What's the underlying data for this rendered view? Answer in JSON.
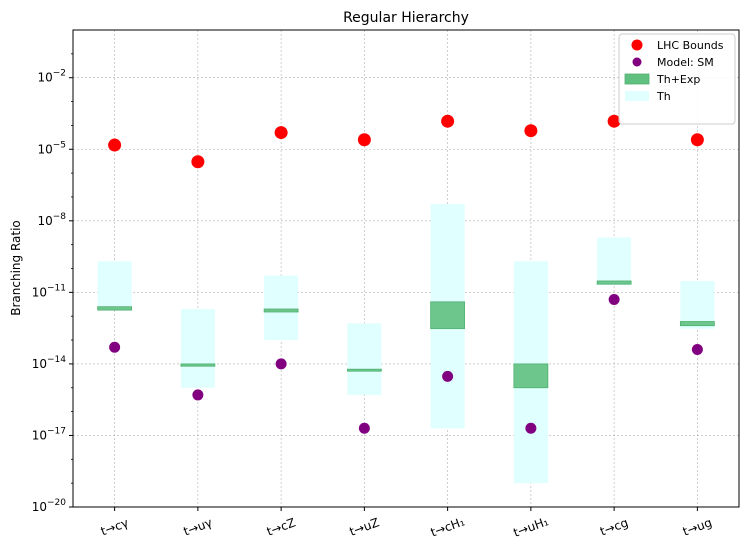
{
  "chart_data": {
    "type": "scatter",
    "title": "Regular Hierarchy",
    "ylabel": "Branching Ratio",
    "xlabel": "",
    "yscale": "log",
    "ylim_exponents": [
      -20,
      0
    ],
    "ytick_exponents": [
      -20,
      -17,
      -14,
      -11,
      -8,
      -5,
      -2
    ],
    "ytick_labels": [
      "10^-20",
      "10^-17",
      "10^-14",
      "10^-11",
      "10^-8",
      "10^-5",
      "10^-2"
    ],
    "categories": [
      "t→cγ",
      "t→uγ",
      "t→cZ",
      "t→uZ",
      "t→cH₁",
      "t→uH₁",
      "t→cg",
      "t→ug"
    ],
    "legend": {
      "position": "top-right",
      "entries": [
        "LHC Bounds",
        "Model: SM",
        "Th+Exp",
        "Th"
      ]
    },
    "grid": true,
    "series": [
      {
        "name": "LHC Bounds",
        "kind": "marker",
        "color": "#ff0000",
        "values": [
          1.5e-05,
          3e-06,
          5e-05,
          2.5e-05,
          0.00015,
          6e-05,
          0.00015,
          2.5e-05
        ]
      },
      {
        "name": "Model: SM",
        "kind": "marker",
        "color": "#800080",
        "values": [
          5e-14,
          5e-16,
          1e-14,
          2e-17,
          3e-15,
          2e-17,
          5e-12,
          4e-14
        ]
      },
      {
        "name": "Th",
        "kind": "range",
        "color": "#e0ffff",
        "low": [
          2e-12,
          1e-15,
          1e-13,
          5e-16,
          2e-17,
          1e-19,
          2e-11,
          3e-13
        ],
        "high": [
          2e-10,
          2e-12,
          5e-11,
          5e-13,
          5e-08,
          2e-10,
          2e-09,
          3e-11
        ]
      },
      {
        "name": "Th+Exp",
        "kind": "range",
        "color": "#60c080",
        "low": [
          1.8e-12,
          8e-15,
          1.5e-12,
          5e-15,
          3e-13,
          1e-15,
          2.2e-11,
          4e-13
        ],
        "high": [
          2.5e-12,
          1e-14,
          2e-12,
          6e-15,
          4e-12,
          1e-14,
          3e-11,
          6e-13
        ]
      }
    ]
  }
}
